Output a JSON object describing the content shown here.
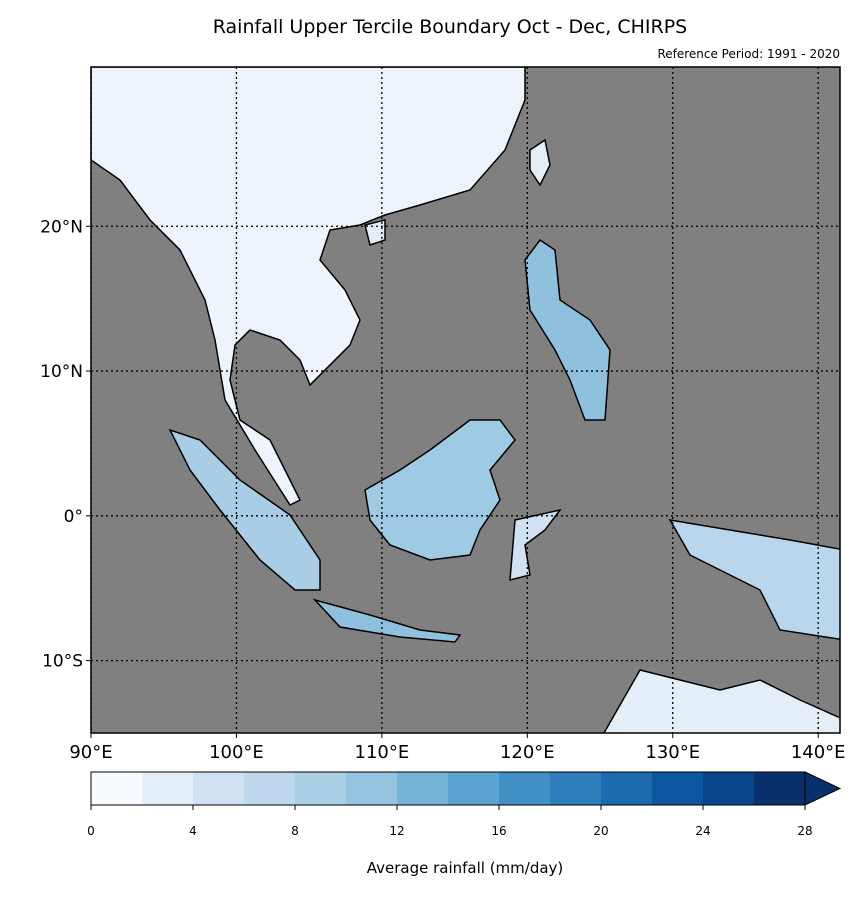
{
  "title": "Rainfall Upper Tercile Boundary Oct - Dec, CHIRPS",
  "subtitle": "Reference Period: 1991 - 2020",
  "map": {
    "xlim": [
      90,
      141.5
    ],
    "ylim": [
      -15,
      31
    ],
    "xticks": [
      {
        "value": 90,
        "label": "90°E"
      },
      {
        "value": 100,
        "label": "100°E"
      },
      {
        "value": 110,
        "label": "110°E"
      },
      {
        "value": 120,
        "label": "120°E"
      },
      {
        "value": 130,
        "label": "130°E"
      },
      {
        "value": 140,
        "label": "140°E"
      }
    ],
    "yticks": [
      {
        "value": -10,
        "label": "10°S"
      },
      {
        "value": 0,
        "label": "0°"
      },
      {
        "value": 10,
        "label": "10°N"
      },
      {
        "value": 20,
        "label": "20°N"
      }
    ],
    "grid": true
  },
  "colorbar": {
    "label": "Average rainfall (mm/day)",
    "levels": [
      0,
      2,
      4,
      6,
      8,
      10,
      12,
      14,
      16,
      18,
      20,
      22,
      24,
      26,
      28
    ],
    "colors": [
      "#f7fbff",
      "#e3eef9",
      "#d0e1f2",
      "#bfd8ed",
      "#abd0e6",
      "#94c4df",
      "#75b4d8",
      "#5ba3d0",
      "#4090c5",
      "#2e7ebc",
      "#1c6ab0",
      "#0d57a1",
      "#08458a",
      "#08306b"
    ],
    "ticks": [
      0,
      4,
      8,
      12,
      16,
      20,
      24,
      28
    ],
    "extend": "max"
  }
}
